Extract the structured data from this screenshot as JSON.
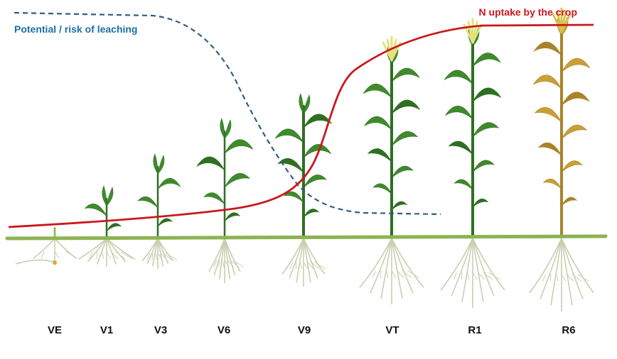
{
  "labels": {
    "leaching": "Potential / risk of leaching",
    "uptake": "N uptake by the crop"
  },
  "stages": [
    "VE",
    "V1",
    "V3",
    "V6",
    "V9",
    "VT",
    "R1",
    "R6"
  ],
  "colors": {
    "leaching_line": "#2f5f7e",
    "leaching_text": "#1f6ea8",
    "uptake_line": "#c8191d",
    "uptake_text": "#c8191d",
    "ground": "#8db350",
    "leaf_green": "#3f8b2c",
    "leaf_dark": "#2e6f22",
    "tassel": "#e6e27a",
    "senescent": "#c9a033",
    "roots": "#c9cfb0"
  },
  "icons": [
    "corn-seedling",
    "corn-plant",
    "root-system"
  ]
}
